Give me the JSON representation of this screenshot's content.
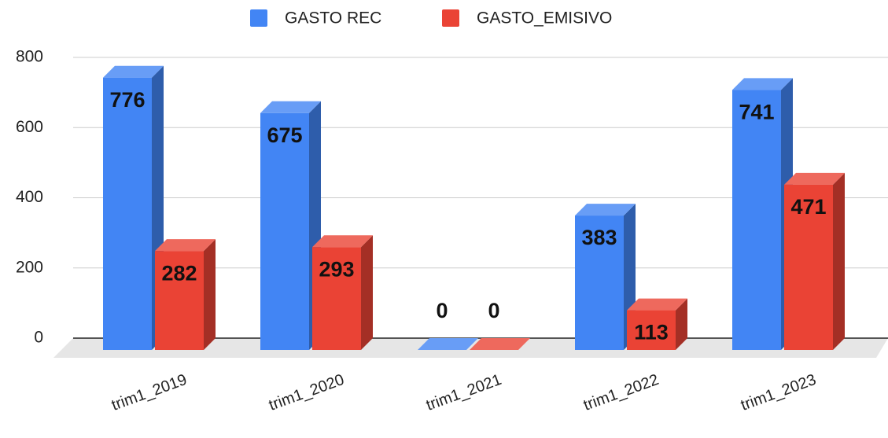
{
  "chart_data": {
    "type": "bar3d",
    "categories": [
      "trim1_2019",
      "trim1_2020",
      "trim1_2021",
      "trim1_2022",
      "trim1_2023"
    ],
    "series": [
      {
        "name": "GASTO REC",
        "color": "#4285f4",
        "values": [
          776,
          675,
          0,
          383,
          741
        ]
      },
      {
        "name": "GASTO_EMISIVO",
        "color": "#ea4335",
        "values": [
          282,
          293,
          0,
          113,
          471
        ]
      }
    ],
    "ylim": [
      0,
      800
    ],
    "yticks": [
      0,
      200,
      400,
      600,
      800
    ],
    "grid": true,
    "legend": "top"
  }
}
